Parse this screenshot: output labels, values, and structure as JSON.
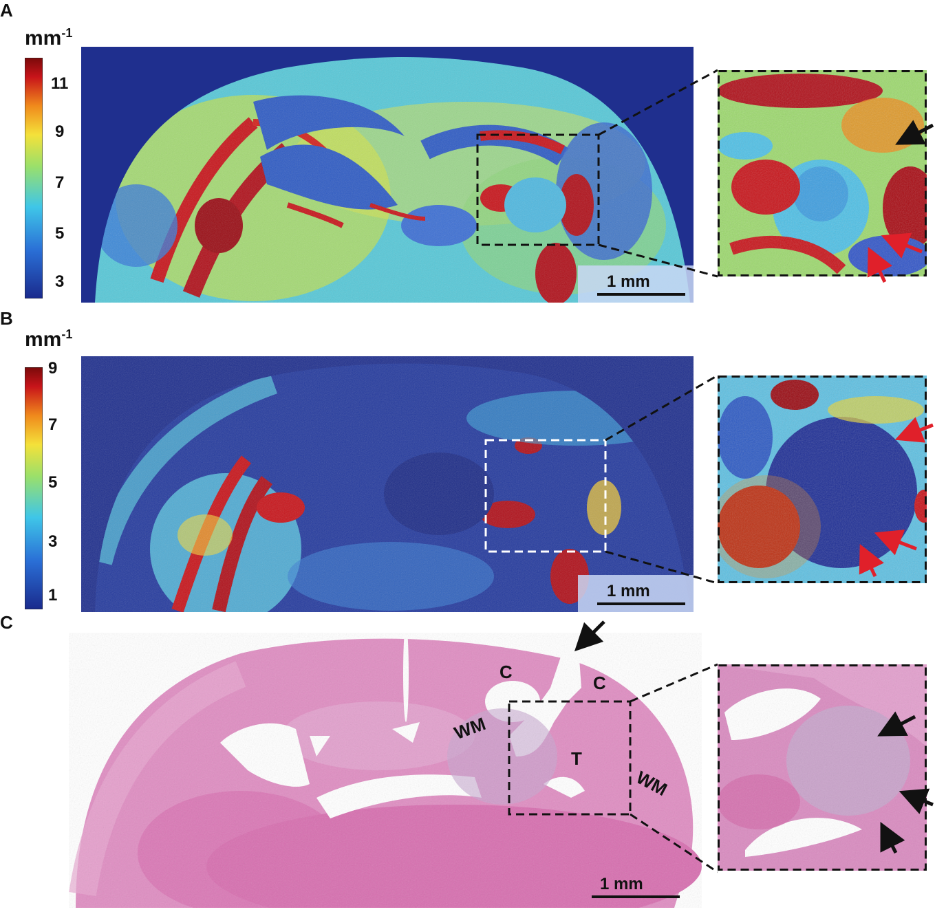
{
  "panels": {
    "a": {
      "label": "A",
      "unit": "mm",
      "unit_exp": "-1",
      "colorbar_ticks": [
        "11",
        "9",
        "7",
        "5",
        "3"
      ],
      "scale_bar": "1 mm"
    },
    "b": {
      "label": "B",
      "unit": "mm",
      "unit_exp": "-1",
      "colorbar_ticks": [
        "9",
        "7",
        "5",
        "3",
        "1"
      ],
      "scale_bar": "1 mm"
    },
    "c": {
      "label": "C",
      "scale_bar": "1 mm",
      "regions": {
        "cortex_left": "C",
        "cortex_right": "C",
        "wm_left": "WM",
        "wm_right": "WM",
        "tumor": "T"
      }
    }
  },
  "colors": {
    "map_background": "#1f2f8e",
    "colormap": [
      "#1a2a8c",
      "#2a6fd6",
      "#3fc6e8",
      "#9be06a",
      "#f4e13a",
      "#f08a1c",
      "#c8141a",
      "#7a0a0a"
    ],
    "he_stain": "#d86aa8",
    "arrow_red": "#e0202a",
    "arrow_black": "#111111"
  }
}
